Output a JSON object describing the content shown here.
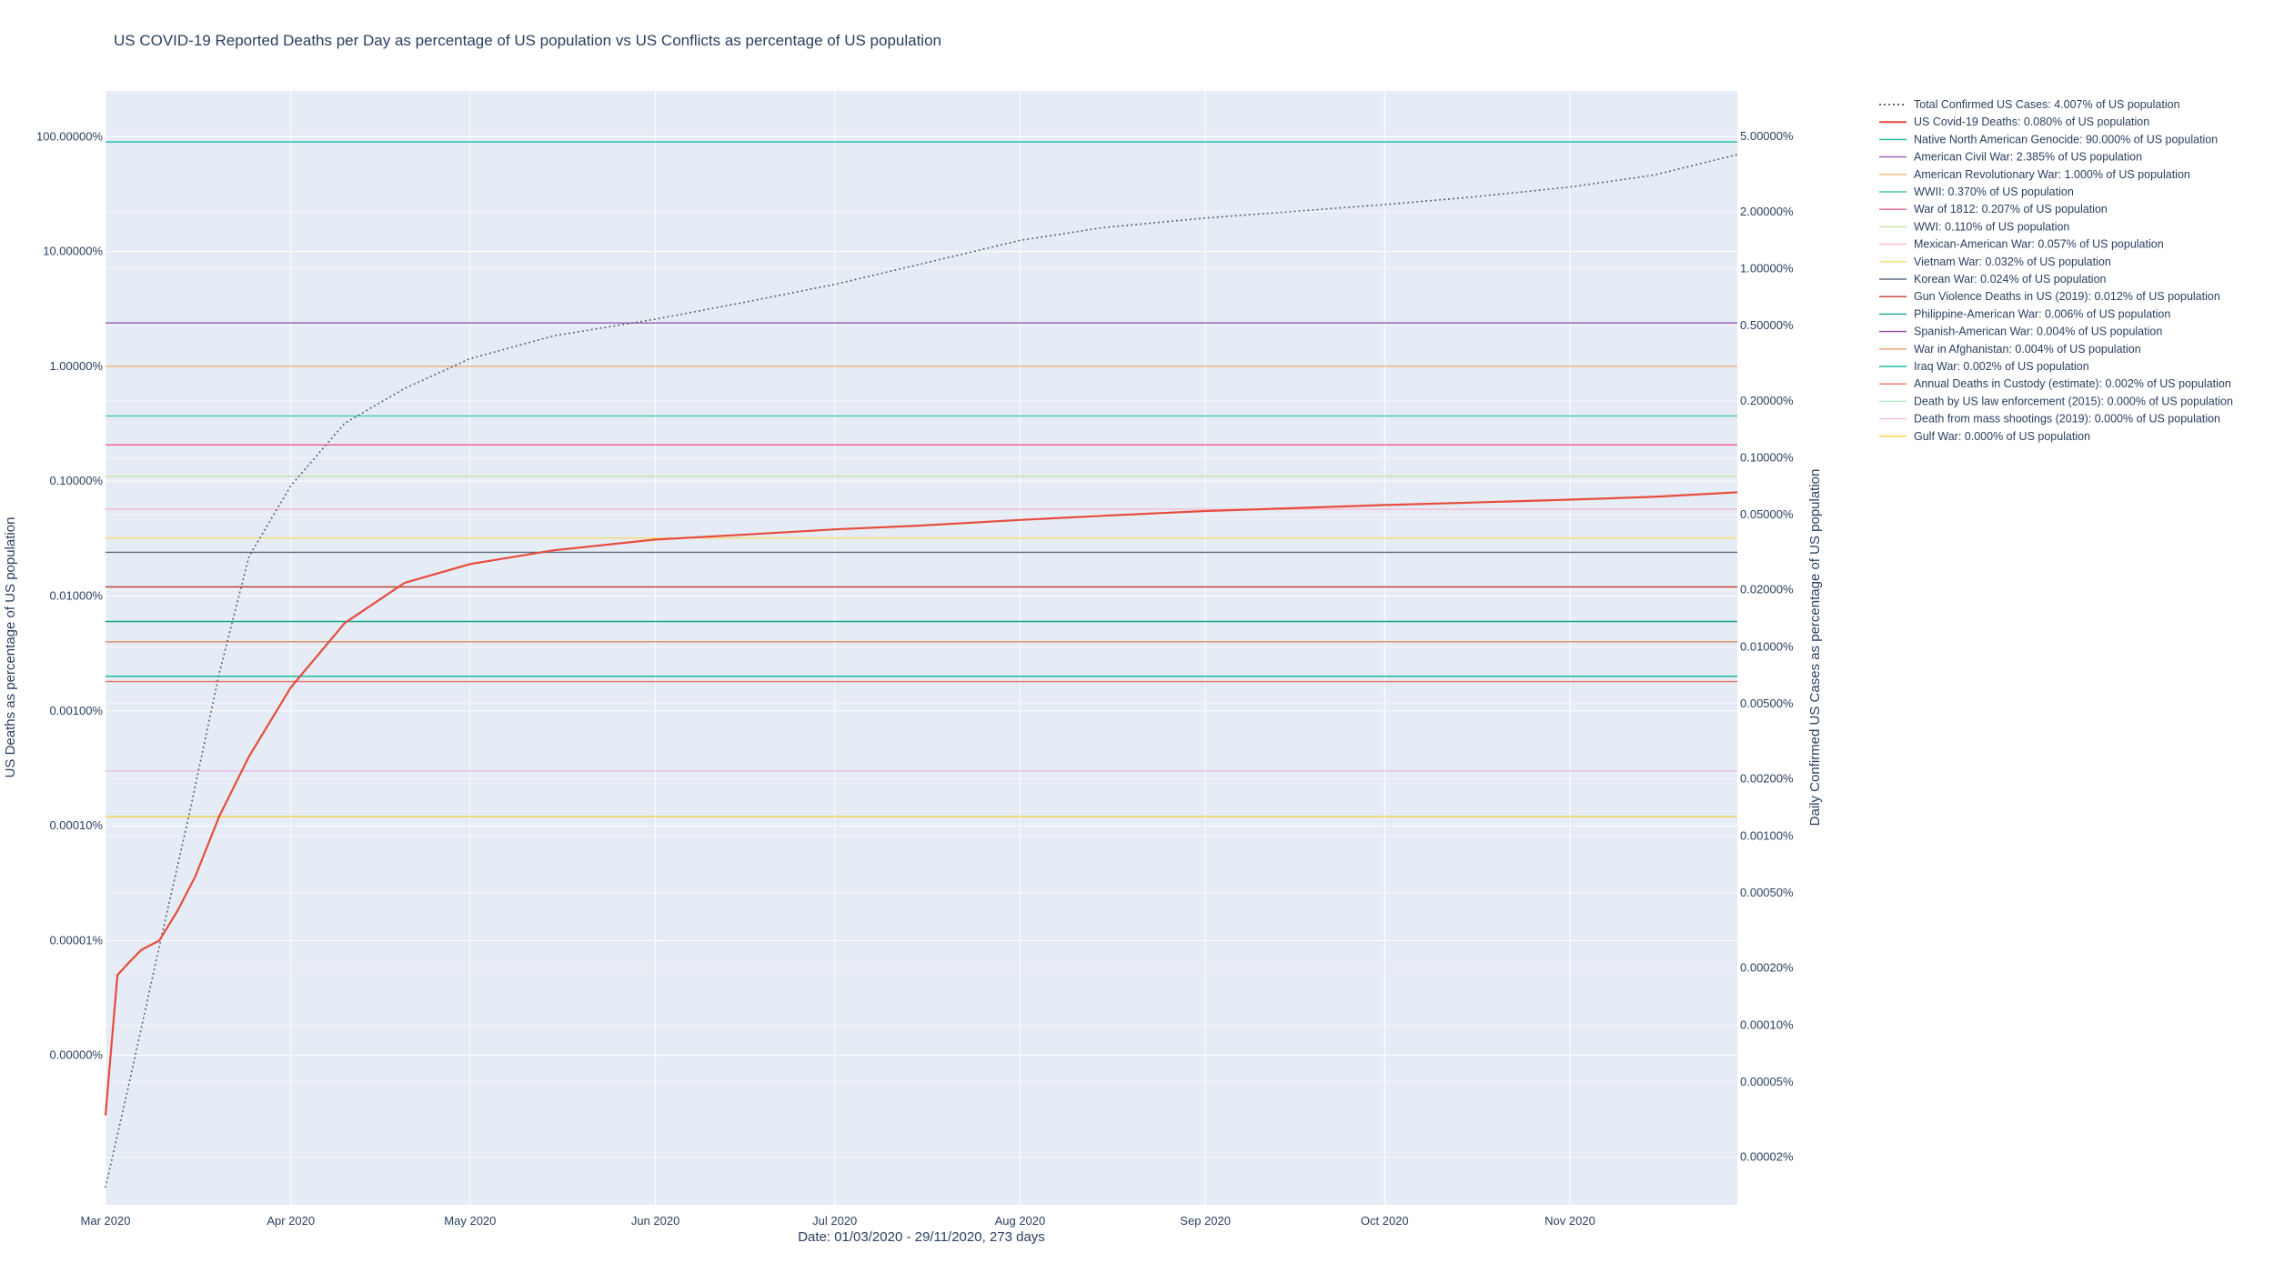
{
  "chart_data": {
    "type": "line",
    "title": "US COVID-19 Reported Deaths per Day as percentage of US population vs US Conflicts as percentage of US population",
    "xlabel": "Date: 01/03/2020 - 29/11/2020, 273 days",
    "ylabel_left": "US Deaths as percentage of US population",
    "ylabel_right": "Daily Confirmed US Cases as percentage of US population",
    "x_ticks": [
      {
        "date": "2020-03-01",
        "label": "Mar 2020"
      },
      {
        "date": "2020-04-01",
        "label": "Apr 2020"
      },
      {
        "date": "2020-05-01",
        "label": "May 2020"
      },
      {
        "date": "2020-06-01",
        "label": "Jun 2020"
      },
      {
        "date": "2020-07-01",
        "label": "Jul 2020"
      },
      {
        "date": "2020-08-01",
        "label": "Aug 2020"
      },
      {
        "date": "2020-09-01",
        "label": "Sep 2020"
      },
      {
        "date": "2020-10-01",
        "label": "Oct 2020"
      },
      {
        "date": "2020-11-01",
        "label": "Nov 2020"
      }
    ],
    "x_range": [
      "2020-03-01",
      "2020-11-29"
    ],
    "y_left_scale": "log",
    "y_left_range_pct": [
      5e-08,
      250
    ],
    "y_left_ticks": [
      {
        "value": 100,
        "label": "100.00000%"
      },
      {
        "value": 10,
        "label": "10.00000%"
      },
      {
        "value": 1,
        "label": "1.00000%"
      },
      {
        "value": 0.1,
        "label": "0.10000%"
      },
      {
        "value": 0.01,
        "label": "0.01000%"
      },
      {
        "value": 0.001,
        "label": "0.00100%"
      },
      {
        "value": 0.0001,
        "label": "0.00010%"
      },
      {
        "value": 1e-05,
        "label": "0.00001%"
      },
      {
        "value": 1e-06,
        "label": "0.00000%"
      }
    ],
    "y_right_scale": "log",
    "y_right_range_pct": [
      1.12e-05,
      8.7
    ],
    "y_right_ticks": [
      {
        "value": 5,
        "label": "5.00000%"
      },
      {
        "value": 2,
        "label": "2.00000%"
      },
      {
        "value": 1,
        "label": "1.00000%"
      },
      {
        "value": 0.5,
        "label": "0.50000%"
      },
      {
        "value": 0.2,
        "label": "0.20000%"
      },
      {
        "value": 0.1,
        "label": "0.10000%"
      },
      {
        "value": 0.05,
        "label": "0.05000%"
      },
      {
        "value": 0.02,
        "label": "0.02000%"
      },
      {
        "value": 0.01,
        "label": "0.01000%"
      },
      {
        "value": 0.005,
        "label": "0.00500%"
      },
      {
        "value": 0.002,
        "label": "0.00200%"
      },
      {
        "value": 0.001,
        "label": "0.00100%"
      },
      {
        "value": 0.0005,
        "label": "0.00050%"
      },
      {
        "value": 0.0002,
        "label": "0.00020%"
      },
      {
        "value": 0.0001,
        "label": "0.00010%"
      },
      {
        "value": 5e-05,
        "label": "0.00005%"
      },
      {
        "value": 2e-05,
        "label": "0.00002%"
      }
    ],
    "grid": true,
    "legend_position": "right",
    "series": [
      {
        "name": "Total Confirmed US Cases: 4.007% of US population",
        "axis": "right",
        "style": "dotted",
        "color": "#566573",
        "x": [
          "2020-03-01",
          "2020-03-05",
          "2020-03-10",
          "2020-03-15",
          "2020-03-20",
          "2020-03-25",
          "2020-04-01",
          "2020-04-10",
          "2020-04-20",
          "2020-05-01",
          "2020-05-15",
          "2020-06-01",
          "2020-06-15",
          "2020-07-01",
          "2020-07-15",
          "2020-08-01",
          "2020-08-15",
          "2020-09-01",
          "2020-09-15",
          "2020-10-01",
          "2020-10-15",
          "2020-11-01",
          "2020-11-15",
          "2020-11-29"
        ],
        "y": [
          1.38e-05,
          5e-05,
          0.00026,
          0.0013,
          0.0072,
          0.03,
          0.071,
          0.152,
          0.232,
          0.334,
          0.441,
          0.54,
          0.655,
          0.825,
          1.05,
          1.41,
          1.65,
          1.85,
          2.0,
          2.18,
          2.38,
          2.7,
          3.12,
          4.007
        ]
      },
      {
        "name": "US Covid-19 Deaths: 0.080% of US population",
        "axis": "left",
        "style": "solid",
        "color": "#e74c3c",
        "x": [
          "2020-03-01",
          "2020-03-03",
          "2020-03-05",
          "2020-03-07",
          "2020-03-10",
          "2020-03-13",
          "2020-03-16",
          "2020-03-20",
          "2020-03-25",
          "2020-04-01",
          "2020-04-10",
          "2020-04-20",
          "2020-05-01",
          "2020-05-15",
          "2020-06-01",
          "2020-06-15",
          "2020-07-01",
          "2020-07-15",
          "2020-08-01",
          "2020-08-15",
          "2020-09-01",
          "2020-09-15",
          "2020-10-01",
          "2020-10-15",
          "2020-11-01",
          "2020-11-15",
          "2020-11-29"
        ],
        "y": [
          3e-07,
          5e-06,
          6.5e-06,
          8.3e-06,
          1e-05,
          1.8e-05,
          3.6e-05,
          0.00012,
          0.0004,
          0.0016,
          0.0058,
          0.013,
          0.019,
          0.025,
          0.031,
          0.034,
          0.038,
          0.041,
          0.046,
          0.05,
          0.055,
          0.058,
          0.062,
          0.065,
          0.069,
          0.073,
          0.08
        ]
      },
      {
        "name": "Native North American Genocide: 90.000% of US population",
        "axis": "left",
        "color": "#1abc9c",
        "value": 90.0
      },
      {
        "name": "American Civil War: 2.385% of US population",
        "axis": "left",
        "color": "#9b59b6",
        "value": 2.385
      },
      {
        "name": "American Revolutionary War: 1.000% of US population",
        "axis": "left",
        "color": "#f0b27a",
        "value": 1.0
      },
      {
        "name": "WWII: 0.370% of US population",
        "axis": "left",
        "color": "#48c9b0",
        "value": 0.37
      },
      {
        "name": "War of 1812: 0.207% of US population",
        "axis": "left",
        "color": "#f06292",
        "value": 0.207
      },
      {
        "name": "WWI: 0.110% of US population",
        "axis": "left",
        "color": "#c5e1a5",
        "value": 0.11
      },
      {
        "name": "Mexican-American War: 0.057% of US population",
        "axis": "left",
        "color": "#f8bbd0",
        "value": 0.057
      },
      {
        "name": "Vietnam War: 0.032% of US population",
        "axis": "left",
        "color": "#f7dc6f",
        "value": 0.032
      },
      {
        "name": "Korean War: 0.024% of US population",
        "axis": "left",
        "color": "#5d6d7e",
        "value": 0.024
      },
      {
        "name": "Gun Violence Deaths in US (2019): 0.012% of US population",
        "axis": "left",
        "color": "#c0392b",
        "value": 0.012
      },
      {
        "name": "Philippine-American War: 0.006% of US population",
        "axis": "left",
        "color": "#17a589",
        "value": 0.006
      },
      {
        "name": "Spanish-American War: 0.004% of US population",
        "axis": "left",
        "color": "#8e44ad",
        "value": 0.004
      },
      {
        "name": "War in Afghanistan: 0.004% of US population",
        "axis": "left",
        "color": "#e59866",
        "value": 0.004
      },
      {
        "name": "Iraq War: 0.002% of US population",
        "axis": "left",
        "color": "#1abc9c",
        "value": 0.002
      },
      {
        "name": "Annual Deaths in Custody (estimate): 0.002% of US population",
        "axis": "left",
        "color": "#ec7063",
        "value": 0.0018
      },
      {
        "name": "Death by US law enforcement (2015): 0.000% of US population",
        "axis": "left",
        "color": "#abebc6",
        "value": 0.0003
      },
      {
        "name": "Death from mass shootings (2019): 0.000% of US population",
        "axis": "left",
        "color": "#f5b7f1",
        "value": 0.0003
      },
      {
        "name": "Gulf War: 0.000% of US population",
        "axis": "left",
        "color": "#f4d03f",
        "value": 0.00012
      }
    ]
  }
}
